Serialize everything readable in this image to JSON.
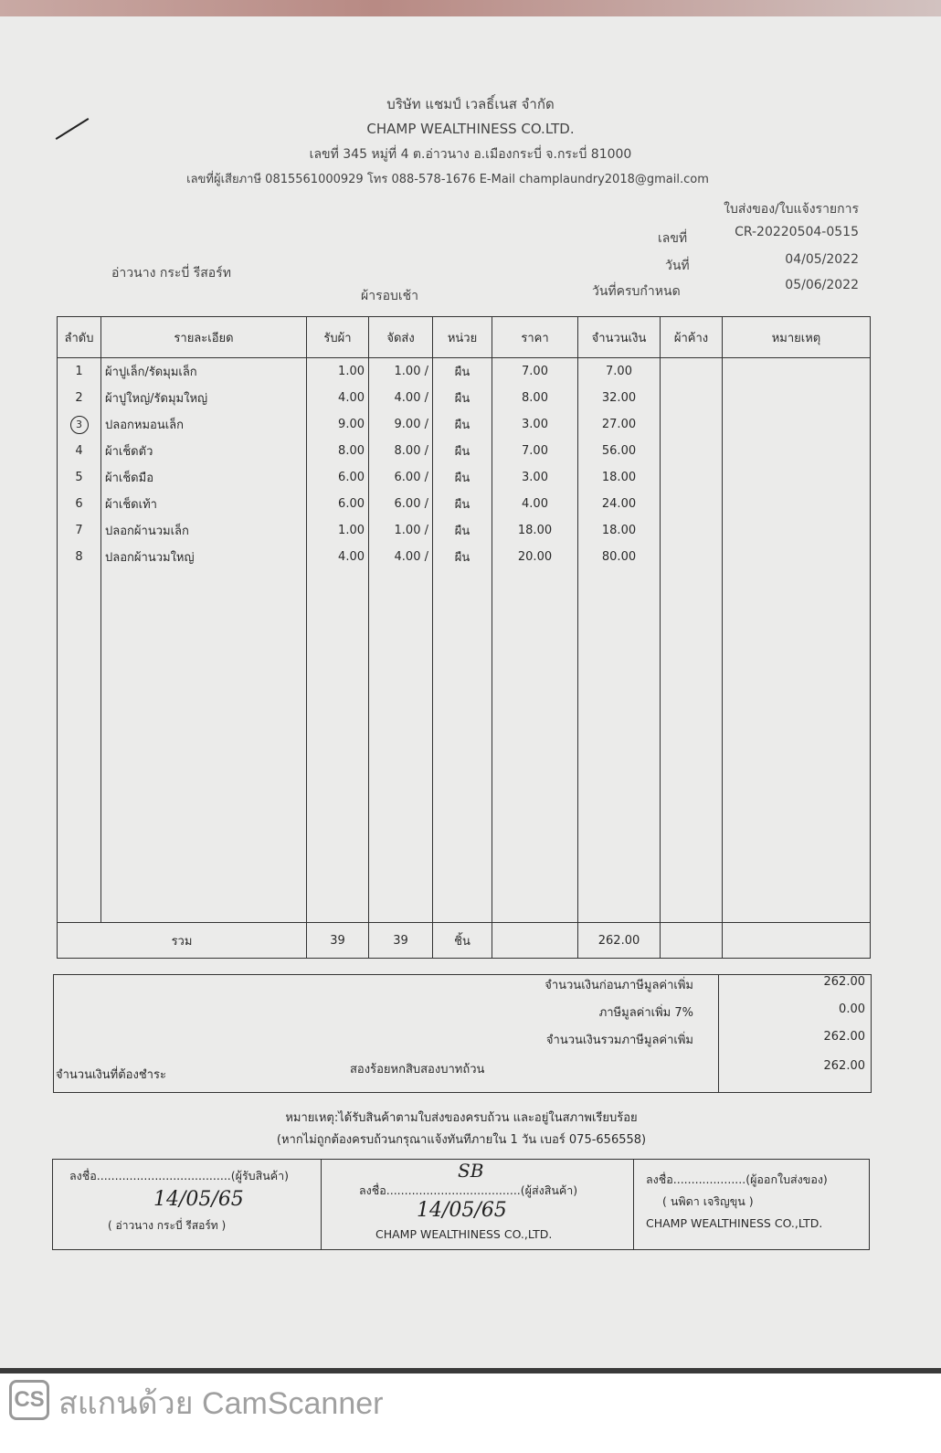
{
  "company": {
    "name_th": "บริษัท แชมป์ เวลธิ์เนส จำกัด",
    "name_en": "CHAMP WEALTHINESS CO.LTD.",
    "address": "เลขที่ 345 หมู่ที่ 4 ต.อ่าวนาง อ.เมืองกระบี่ จ.กระบี่ 81000",
    "contact": "เลขที่ผู้เสียภาษี 0815561000929 โทร 088-578-1676 E-Mail champlaundry2018@gmail.com"
  },
  "document": {
    "type": "ใบส่งของ/ใบแจ้งรายการ",
    "number_label": "เลขที่",
    "number": "CR-20220504-0515",
    "date_label": "วันที่",
    "date": "04/05/2022",
    "due_label": "วันที่ครบกำหนด",
    "due": "05/06/2022",
    "customer": "อ่าวนาง กระบี่ รีสอร์ท",
    "round": "ผ้ารอบเช้า"
  },
  "table": {
    "headers": [
      "ลำดับ",
      "รายละเอียด",
      "รับผ้า",
      "จัดส่ง",
      "หน่วย",
      "ราคา",
      "จำนวนเงิน",
      "ผ้าค้าง",
      "หมายเหตุ"
    ],
    "rows": [
      {
        "no": "1",
        "desc": "ผ้าปูเล็ก/รัดมุมเล็ก",
        "recv": "1.00",
        "sent": "1.00 /",
        "unit": "ผืน",
        "price": "7.00",
        "amount": "7.00"
      },
      {
        "no": "2",
        "desc": "ผ้าปูใหญ่/รัดมุมใหญ่",
        "recv": "4.00",
        "sent": "4.00 /",
        "unit": "ผืน",
        "price": "8.00",
        "amount": "32.00"
      },
      {
        "no": "3",
        "desc": "ปลอกหมอนเล็ก",
        "recv": "9.00",
        "sent": "9.00 /",
        "unit": "ผืน",
        "price": "3.00",
        "amount": "27.00"
      },
      {
        "no": "4",
        "desc": "ผ้าเช็ดตัว",
        "recv": "8.00",
        "sent": "8.00 /",
        "unit": "ผืน",
        "price": "7.00",
        "amount": "56.00"
      },
      {
        "no": "5",
        "desc": "ผ้าเช็ดมือ",
        "recv": "6.00",
        "sent": "6.00 /",
        "unit": "ผืน",
        "price": "3.00",
        "amount": "18.00"
      },
      {
        "no": "6",
        "desc": "ผ้าเช็ดเท้า",
        "recv": "6.00",
        "sent": "6.00 /",
        "unit": "ผืน",
        "price": "4.00",
        "amount": "24.00"
      },
      {
        "no": "7",
        "desc": "ปลอกผ้านวมเล็ก",
        "recv": "1.00",
        "sent": "1.00 /",
        "unit": "ผืน",
        "price": "18.00",
        "amount": "18.00"
      },
      {
        "no": "8",
        "desc": "ปลอกผ้านวมใหญ่",
        "recv": "4.00",
        "sent": "4.00 /",
        "unit": "ผืน",
        "price": "20.00",
        "amount": "80.00"
      }
    ],
    "total": {
      "label": "รวม",
      "recv": "39",
      "sent": "39",
      "unit": "ชิ้น",
      "amount": "262.00"
    }
  },
  "summary": {
    "pre_vat_label": "จำนวนเงินก่อนภาษีมูลค่าเพิ่ม",
    "pre_vat": "262.00",
    "vat_label": "ภาษีมูลค่าเพิ่ม 7%",
    "vat": "0.00",
    "incl_vat_label": "จำนวนเงินรวมภาษีมูลค่าเพิ่ม",
    "incl_vat": "262.00",
    "payable_label": "จำนวนเงินที่ต้องชำระ",
    "payable_words": "สองร้อยหกสิบสองบาทถ้วน",
    "payable": "262.00"
  },
  "note": {
    "line1": "หมายเหตุ:ได้รับสินค้าตามใบส่งของครบถ้วน และอยู่ในสภาพเรียบร้อย",
    "line2": "(หากไม่ถูกต้องครบถ้วนกรุณาแจ้งทันทีภายใน 1 วัน   เบอร์ 075-656558)"
  },
  "signatures": [
    {
      "line": "ลงชื่อ.....................................(ผู้รับสินค้า)",
      "name": "(      อ่าวนาง กระบี่ รีสอร์ท      )",
      "handwritten": "14/05/65"
    },
    {
      "line": "ลงชื่อ.....................................(ผู้ส่งสินค้า)",
      "name": "CHAMP WEALTHINESS CO.,LTD.",
      "handwritten": "14/05/65",
      "initials": "SB"
    },
    {
      "line": "ลงชื่อ....................(ผู้ออกใบส่งของ)",
      "person": "(        นพิดา เจริญขุน        )",
      "name": "CHAMP WEALTHINESS CO.,LTD."
    }
  ],
  "watermark": {
    "logo": "CS",
    "text": "สแกนด้วย CamScanner"
  }
}
